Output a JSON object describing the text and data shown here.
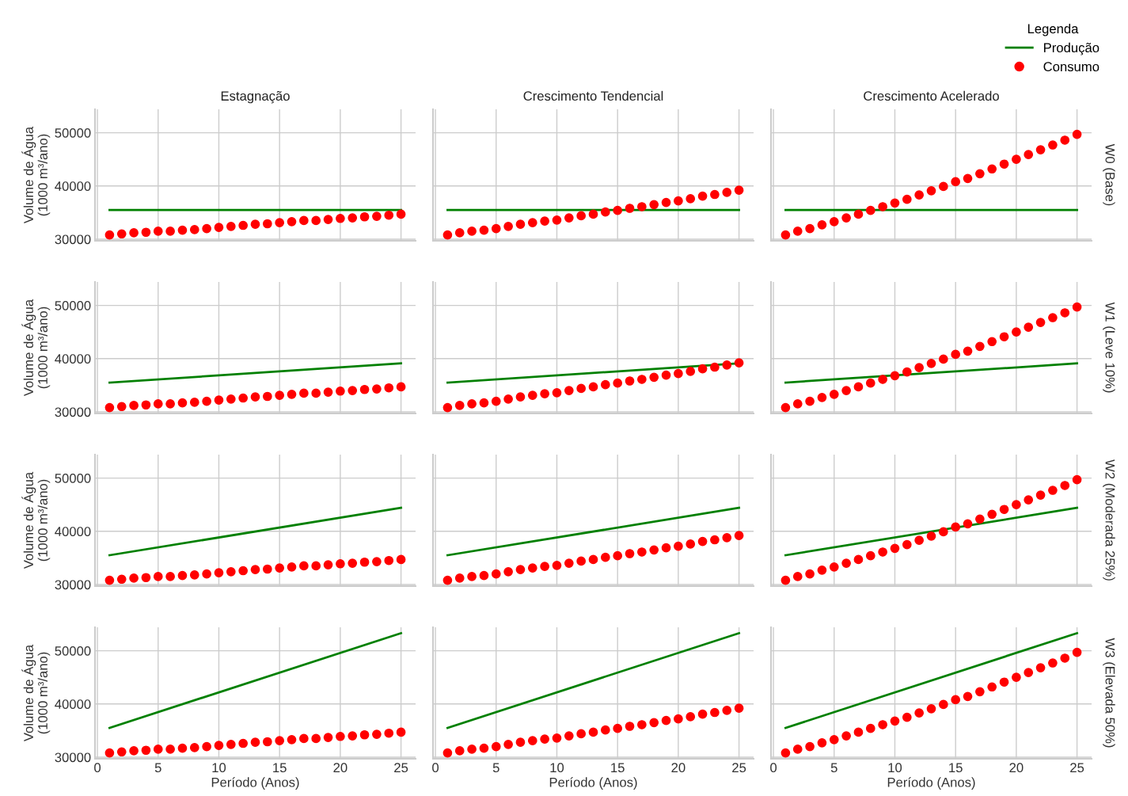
{
  "chart_data": [
    {
      "type": "line",
      "title": "Estagnação",
      "ylabel": "Volume de Água\n(1000 m³/ano)",
      "xlim": [
        -0.2,
        26.2
      ],
      "xticks": [
        0,
        5,
        10,
        15,
        20,
        25
      ],
      "ylim": [
        29700,
        54400
      ],
      "yticks": [
        30000,
        40000,
        50000
      ],
      "grid": true,
      "tick_labels": "y",
      "series": [
        {
          "type": "line",
          "color": "#008000",
          "x": [
            1,
            25
          ],
          "values": [
            35500,
            35500
          ]
        },
        {
          "type": "scatter",
          "marker": "circle",
          "color": "#ff0000",
          "x": [
            1,
            2,
            3,
            4,
            5,
            6,
            7,
            8,
            9,
            10,
            11,
            12,
            13,
            14,
            15,
            16,
            17,
            18,
            19,
            20,
            21,
            22,
            23,
            24,
            25
          ],
          "values": [
            30800,
            31000,
            31200,
            31300,
            31500,
            31500,
            31700,
            31800,
            32000,
            32200,
            32400,
            32600,
            32800,
            32900,
            33100,
            33300,
            33500,
            33500,
            33700,
            33900,
            34000,
            34200,
            34300,
            34500,
            34700
          ]
        }
      ]
    },
    {
      "type": "line",
      "title": "Crescimento Tendencial",
      "xlim": [
        -0.2,
        26.2
      ],
      "xticks": [
        0,
        5,
        10,
        15,
        20,
        25
      ],
      "ylim": [
        29700,
        54400
      ],
      "yticks": [
        30000,
        40000,
        50000
      ],
      "grid": true,
      "tick_labels": false,
      "series": [
        {
          "type": "line",
          "color": "#008000",
          "x": [
            1,
            25
          ],
          "values": [
            35500,
            35500
          ]
        },
        {
          "type": "scatter",
          "marker": "circle",
          "color": "#ff0000",
          "x": [
            1,
            2,
            3,
            4,
            5,
            6,
            7,
            8,
            9,
            10,
            11,
            12,
            13,
            14,
            15,
            16,
            17,
            18,
            19,
            20,
            21,
            22,
            23,
            24,
            25
          ],
          "values": [
            30800,
            31200,
            31500,
            31700,
            32000,
            32400,
            32800,
            33100,
            33400,
            33600,
            34000,
            34400,
            34700,
            35100,
            35400,
            35800,
            36100,
            36500,
            36900,
            37200,
            37600,
            38100,
            38400,
            38800,
            39200
          ]
        }
      ]
    },
    {
      "type": "line",
      "title": "Crescimento Acelerado",
      "annotations": [
        "W0 (Base)"
      ],
      "legend_title": "Legenda",
      "legend": "top right",
      "xlim": [
        -0.2,
        26.2
      ],
      "xticks": [
        0,
        5,
        10,
        15,
        20,
        25
      ],
      "ylim": [
        29700,
        54400
      ],
      "yticks": [
        30000,
        40000,
        50000
      ],
      "grid": true,
      "tick_labels": false,
      "series": [
        {
          "type": "line",
          "name": "Produção",
          "color": "#008000",
          "x": [
            1,
            25
          ],
          "values": [
            35500,
            35500
          ]
        },
        {
          "type": "scatter",
          "name": "Consumo",
          "marker": "circle",
          "color": "#ff0000",
          "x": [
            1,
            2,
            3,
            4,
            5,
            6,
            7,
            8,
            9,
            10,
            11,
            12,
            13,
            14,
            15,
            16,
            17,
            18,
            19,
            20,
            21,
            22,
            23,
            24,
            25
          ],
          "values": [
            30800,
            31500,
            32000,
            32700,
            33300,
            34000,
            34700,
            35400,
            36100,
            36800,
            37500,
            38300,
            39100,
            39900,
            40800,
            41400,
            42300,
            43200,
            44100,
            45000,
            45900,
            46800,
            47700,
            48600,
            49700
          ]
        }
      ]
    },
    {
      "type": "line",
      "ylabel": "Volume de Água\n(1000 m³/ano)",
      "xlim": [
        -0.2,
        26.2
      ],
      "xticks": [
        0,
        5,
        10,
        15,
        20,
        25
      ],
      "ylim": [
        29700,
        54400
      ],
      "yticks": [
        30000,
        40000,
        50000
      ],
      "grid": true,
      "tick_labels": "y",
      "series": [
        {
          "type": "line",
          "color": "#008000",
          "x": [
            1,
            25
          ],
          "values": [
            35500,
            39100
          ]
        },
        {
          "type": "scatter",
          "marker": "circle",
          "color": "#ff0000",
          "x": [
            1,
            2,
            3,
            4,
            5,
            6,
            7,
            8,
            9,
            10,
            11,
            12,
            13,
            14,
            15,
            16,
            17,
            18,
            19,
            20,
            21,
            22,
            23,
            24,
            25
          ],
          "values": [
            30800,
            31000,
            31200,
            31300,
            31500,
            31500,
            31700,
            31800,
            32000,
            32200,
            32400,
            32600,
            32800,
            32900,
            33100,
            33300,
            33500,
            33500,
            33700,
            33900,
            34000,
            34200,
            34300,
            34500,
            34700
          ]
        }
      ]
    },
    {
      "type": "line",
      "xlim": [
        -0.2,
        26.2
      ],
      "xticks": [
        0,
        5,
        10,
        15,
        20,
        25
      ],
      "ylim": [
        29700,
        54400
      ],
      "yticks": [
        30000,
        40000,
        50000
      ],
      "grid": true,
      "tick_labels": false,
      "series": [
        {
          "type": "line",
          "color": "#008000",
          "x": [
            1,
            25
          ],
          "values": [
            35500,
            39100
          ]
        },
        {
          "type": "scatter",
          "marker": "circle",
          "color": "#ff0000",
          "x": [
            1,
            2,
            3,
            4,
            5,
            6,
            7,
            8,
            9,
            10,
            11,
            12,
            13,
            14,
            15,
            16,
            17,
            18,
            19,
            20,
            21,
            22,
            23,
            24,
            25
          ],
          "values": [
            30800,
            31200,
            31500,
            31700,
            32000,
            32400,
            32800,
            33100,
            33400,
            33600,
            34000,
            34400,
            34700,
            35100,
            35400,
            35800,
            36100,
            36500,
            36900,
            37200,
            37600,
            38100,
            38400,
            38800,
            39200
          ]
        }
      ]
    },
    {
      "type": "line",
      "annotations": [
        "W1 (Leve 10%)"
      ],
      "xlim": [
        -0.2,
        26.2
      ],
      "xticks": [
        0,
        5,
        10,
        15,
        20,
        25
      ],
      "ylim": [
        29700,
        54400
      ],
      "yticks": [
        30000,
        40000,
        50000
      ],
      "grid": true,
      "tick_labels": false,
      "series": [
        {
          "type": "line",
          "color": "#008000",
          "x": [
            1,
            25
          ],
          "values": [
            35500,
            39100
          ]
        },
        {
          "type": "scatter",
          "marker": "circle",
          "color": "#ff0000",
          "x": [
            1,
            2,
            3,
            4,
            5,
            6,
            7,
            8,
            9,
            10,
            11,
            12,
            13,
            14,
            15,
            16,
            17,
            18,
            19,
            20,
            21,
            22,
            23,
            24,
            25
          ],
          "values": [
            30800,
            31500,
            32000,
            32700,
            33300,
            34000,
            34700,
            35400,
            36100,
            36800,
            37500,
            38300,
            39100,
            39900,
            40800,
            41400,
            42300,
            43200,
            44100,
            45000,
            45900,
            46800,
            47700,
            48600,
            49700
          ]
        }
      ]
    },
    {
      "type": "line",
      "ylabel": "Volume de Água\n(1000 m³/ano)",
      "xlim": [
        -0.2,
        26.2
      ],
      "xticks": [
        0,
        5,
        10,
        15,
        20,
        25
      ],
      "ylim": [
        29700,
        54400
      ],
      "yticks": [
        30000,
        40000,
        50000
      ],
      "grid": true,
      "tick_labels": "y",
      "series": [
        {
          "type": "line",
          "color": "#008000",
          "x": [
            1,
            25
          ],
          "values": [
            35500,
            44400
          ]
        },
        {
          "type": "scatter",
          "marker": "circle",
          "color": "#ff0000",
          "x": [
            1,
            2,
            3,
            4,
            5,
            6,
            7,
            8,
            9,
            10,
            11,
            12,
            13,
            14,
            15,
            16,
            17,
            18,
            19,
            20,
            21,
            22,
            23,
            24,
            25
          ],
          "values": [
            30800,
            31000,
            31200,
            31300,
            31500,
            31500,
            31700,
            31800,
            32000,
            32200,
            32400,
            32600,
            32800,
            32900,
            33100,
            33300,
            33500,
            33500,
            33700,
            33900,
            34000,
            34200,
            34300,
            34500,
            34700
          ]
        }
      ]
    },
    {
      "type": "line",
      "xlim": [
        -0.2,
        26.2
      ],
      "xticks": [
        0,
        5,
        10,
        15,
        20,
        25
      ],
      "ylim": [
        29700,
        54400
      ],
      "yticks": [
        30000,
        40000,
        50000
      ],
      "grid": true,
      "tick_labels": false,
      "series": [
        {
          "type": "line",
          "color": "#008000",
          "x": [
            1,
            25
          ],
          "values": [
            35500,
            44400
          ]
        },
        {
          "type": "scatter",
          "marker": "circle",
          "color": "#ff0000",
          "x": [
            1,
            2,
            3,
            4,
            5,
            6,
            7,
            8,
            9,
            10,
            11,
            12,
            13,
            14,
            15,
            16,
            17,
            18,
            19,
            20,
            21,
            22,
            23,
            24,
            25
          ],
          "values": [
            30800,
            31200,
            31500,
            31700,
            32000,
            32400,
            32800,
            33100,
            33400,
            33600,
            34000,
            34400,
            34700,
            35100,
            35400,
            35800,
            36100,
            36500,
            36900,
            37200,
            37600,
            38100,
            38400,
            38800,
            39200
          ]
        }
      ]
    },
    {
      "type": "line",
      "annotations": [
        "W2 (Moderada 25%)"
      ],
      "xlim": [
        -0.2,
        26.2
      ],
      "xticks": [
        0,
        5,
        10,
        15,
        20,
        25
      ],
      "ylim": [
        29700,
        54400
      ],
      "yticks": [
        30000,
        40000,
        50000
      ],
      "grid": true,
      "tick_labels": false,
      "series": [
        {
          "type": "line",
          "color": "#008000",
          "x": [
            1,
            25
          ],
          "values": [
            35500,
            44400
          ]
        },
        {
          "type": "scatter",
          "marker": "circle",
          "color": "#ff0000",
          "x": [
            1,
            2,
            3,
            4,
            5,
            6,
            7,
            8,
            9,
            10,
            11,
            12,
            13,
            14,
            15,
            16,
            17,
            18,
            19,
            20,
            21,
            22,
            23,
            24,
            25
          ],
          "values": [
            30800,
            31500,
            32000,
            32700,
            33300,
            34000,
            34700,
            35400,
            36100,
            36800,
            37500,
            38300,
            39100,
            39900,
            40800,
            41400,
            42300,
            43200,
            44100,
            45000,
            45900,
            46800,
            47700,
            48600,
            49700
          ]
        }
      ]
    },
    {
      "type": "line",
      "ylabel": "Volume de Água\n(1000 m³/ano)",
      "xlabel": "Período (Anos)",
      "xlim": [
        -0.2,
        26.2
      ],
      "xticks": [
        0,
        5,
        10,
        15,
        20,
        25
      ],
      "ylim": [
        29700,
        54400
      ],
      "yticks": [
        30000,
        40000,
        50000
      ],
      "grid": true,
      "series": [
        {
          "type": "line",
          "color": "#008000",
          "x": [
            1,
            25
          ],
          "values": [
            35500,
            53300
          ]
        },
        {
          "type": "scatter",
          "marker": "circle",
          "color": "#ff0000",
          "x": [
            1,
            2,
            3,
            4,
            5,
            6,
            7,
            8,
            9,
            10,
            11,
            12,
            13,
            14,
            15,
            16,
            17,
            18,
            19,
            20,
            21,
            22,
            23,
            24,
            25
          ],
          "values": [
            30800,
            31000,
            31200,
            31300,
            31500,
            31500,
            31700,
            31800,
            32000,
            32200,
            32400,
            32600,
            32800,
            32900,
            33100,
            33300,
            33500,
            33500,
            33700,
            33900,
            34000,
            34200,
            34300,
            34500,
            34700
          ]
        }
      ]
    },
    {
      "type": "line",
      "xlabel": "Período (Anos)",
      "xlim": [
        -0.2,
        26.2
      ],
      "xticks": [
        0,
        5,
        10,
        15,
        20,
        25
      ],
      "ylim": [
        29700,
        54400
      ],
      "yticks": [
        30000,
        40000,
        50000
      ],
      "grid": true,
      "tick_labels": "x",
      "series": [
        {
          "type": "line",
          "color": "#008000",
          "x": [
            1,
            25
          ],
          "values": [
            35500,
            53300
          ]
        },
        {
          "type": "scatter",
          "marker": "circle",
          "color": "#ff0000",
          "x": [
            1,
            2,
            3,
            4,
            5,
            6,
            7,
            8,
            9,
            10,
            11,
            12,
            13,
            14,
            15,
            16,
            17,
            18,
            19,
            20,
            21,
            22,
            23,
            24,
            25
          ],
          "values": [
            30800,
            31200,
            31500,
            31700,
            32000,
            32400,
            32800,
            33100,
            33400,
            33600,
            34000,
            34400,
            34700,
            35100,
            35400,
            35800,
            36100,
            36500,
            36900,
            37200,
            37600,
            38100,
            38400,
            38800,
            39200
          ]
        }
      ]
    },
    {
      "type": "line",
      "xlabel": "Período (Anos)",
      "annotations": [
        "W3 (Elevada 50%)"
      ],
      "xlim": [
        -0.2,
        26.2
      ],
      "xticks": [
        0,
        5,
        10,
        15,
        20,
        25
      ],
      "ylim": [
        29700,
        54400
      ],
      "yticks": [
        30000,
        40000,
        50000
      ],
      "grid": true,
      "tick_labels": "x",
      "series": [
        {
          "type": "line",
          "color": "#008000",
          "x": [
            1,
            25
          ],
          "values": [
            35500,
            53300
          ]
        },
        {
          "type": "scatter",
          "marker": "circle",
          "color": "#ff0000",
          "x": [
            1,
            2,
            3,
            4,
            5,
            6,
            7,
            8,
            9,
            10,
            11,
            12,
            13,
            14,
            15,
            16,
            17,
            18,
            19,
            20,
            21,
            22,
            23,
            24,
            25
          ],
          "values": [
            30800,
            31500,
            32000,
            32700,
            33300,
            34000,
            34700,
            35400,
            36100,
            36800,
            37500,
            38300,
            39100,
            39900,
            40800,
            41400,
            42300,
            43200,
            44100,
            45000,
            45900,
            46800,
            47700,
            48600,
            49700
          ]
        }
      ]
    }
  ]
}
